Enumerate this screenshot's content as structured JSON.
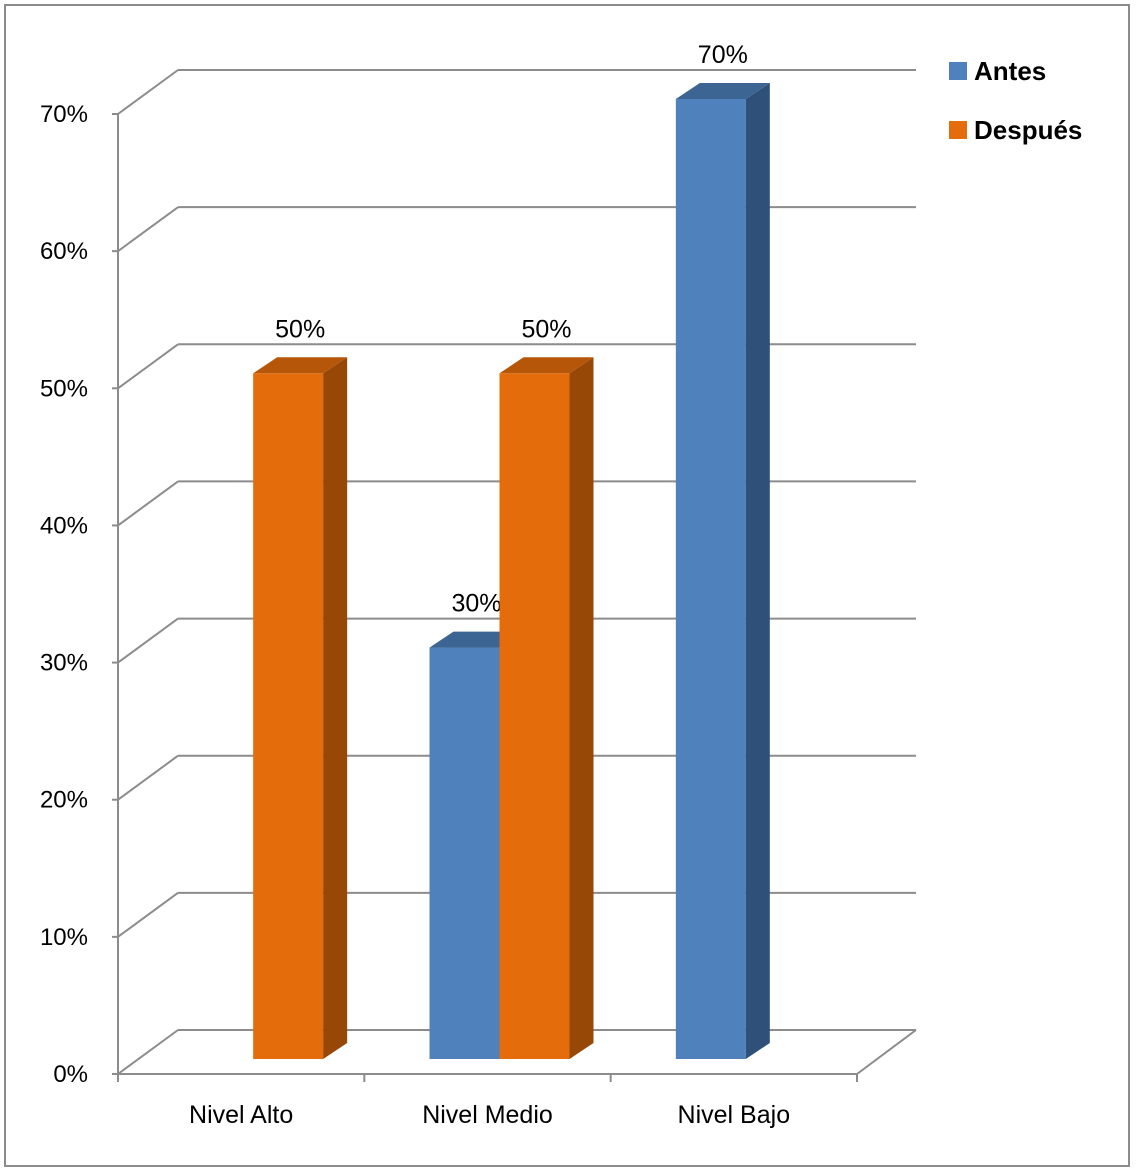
{
  "chart_data": {
    "type": "bar",
    "categories": [
      "Nivel Alto",
      "Nivel Medio",
      "Nivel Bajo"
    ],
    "series": [
      {
        "name": "Antes",
        "values": [
          0,
          30,
          70
        ],
        "labels": [
          "",
          "30%",
          "70%"
        ],
        "color": "#4f81bd",
        "side_color": "#2f5079",
        "top_color": "#3c6594"
      },
      {
        "name": "Después",
        "values": [
          50,
          50,
          0
        ],
        "labels": [
          "50%",
          "50%",
          ""
        ],
        "color": "#e46c0a",
        "side_color": "#974706",
        "top_color": "#b65608"
      }
    ],
    "ylim": [
      0,
      70
    ],
    "yticks": [
      0,
      10,
      20,
      30,
      40,
      50,
      60,
      70
    ],
    "ytick_labels": [
      "0%",
      "10%",
      "20%",
      "30%",
      "40%",
      "50%",
      "60%",
      "70%"
    ],
    "grid": true,
    "legend_position": "top-right",
    "title": "",
    "xlabel": "",
    "ylabel": ""
  }
}
